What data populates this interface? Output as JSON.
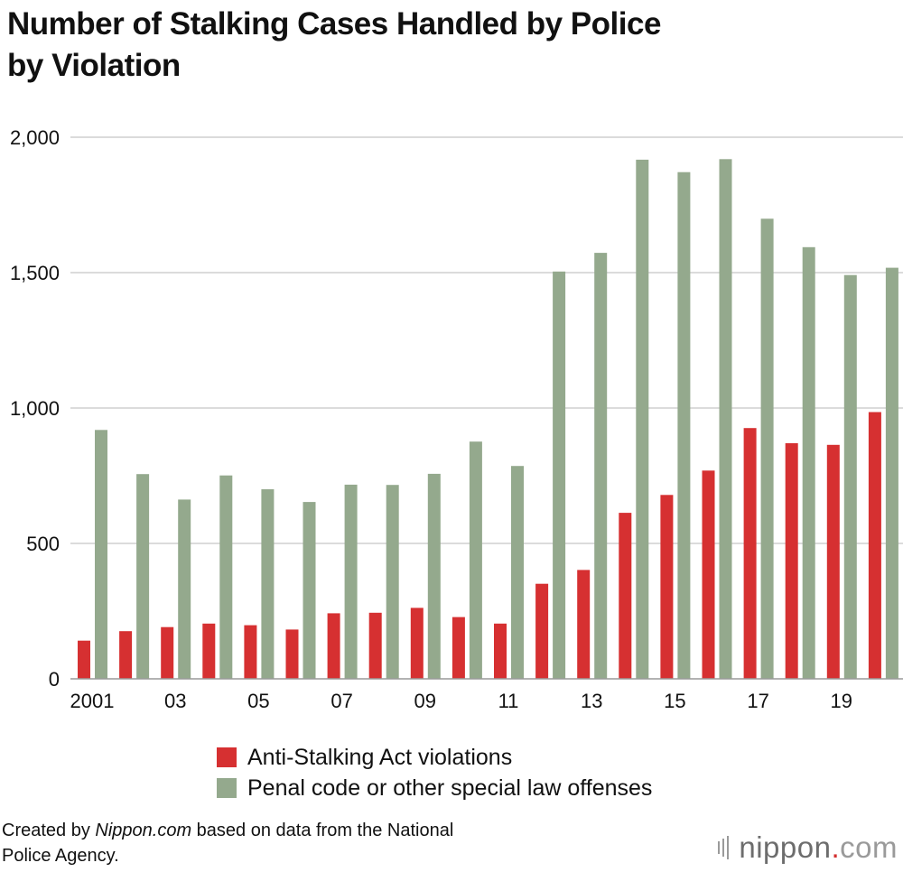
{
  "title_line1": "Number of Stalking Cases Handled by Police",
  "title_line2": "by Violation",
  "chart_data": {
    "type": "bar",
    "x": [
      2001,
      2002,
      2003,
      2004,
      2005,
      2006,
      2007,
      2008,
      2009,
      2010,
      2011,
      2012,
      2013,
      2014,
      2015,
      2016,
      2017,
      2018,
      2019,
      2020
    ],
    "x_tick_labels": [
      "2001",
      "03",
      "05",
      "07",
      "09",
      "11",
      "13",
      "15",
      "17",
      "19"
    ],
    "y_ticks": [
      "2,000",
      "1,500",
      "1,000",
      "500",
      "0"
    ],
    "ylim": [
      0,
      2000
    ],
    "grid": true,
    "series": [
      {
        "name": "Anti-Stalking Act violations",
        "color": "#d63031",
        "values": [
          141,
          176,
          191,
          204,
          198,
          182,
          242,
          244,
          262,
          228,
          204,
          351,
          402,
          613,
          679,
          769,
          926,
          870,
          864,
          985
        ]
      },
      {
        "name": "Penal code or other special law offenses",
        "color": "#94a98d",
        "values": [
          919,
          756,
          662,
          751,
          700,
          653,
          717,
          716,
          757,
          876,
          786,
          1504,
          1573,
          1917,
          1871,
          1919,
          1699,
          1594,
          1491,
          1518
        ]
      }
    ],
    "legend_position": "bottom"
  },
  "credit": {
    "prefix": "Created by ",
    "site": "Nippon.com",
    "suffix": " based on data from the National",
    "line2": "Police Agency."
  },
  "logo": {
    "word": "nippon",
    "dot": ".",
    "tld": "com"
  }
}
